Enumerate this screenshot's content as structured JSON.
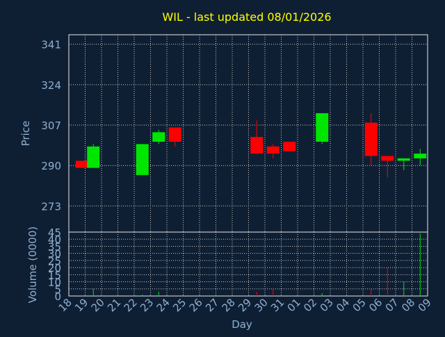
{
  "chart_data": {
    "type": "candlestick",
    "title": "WIL - last updated 08/01/2026",
    "xlabel": "Day",
    "colors": {
      "background": "#0f1f33",
      "plot_border": "#e8e8e8",
      "grid": "#c8c8c8",
      "title": "#ffff00",
      "axis_text": "#8fb0d0",
      "up": "#00e600",
      "down": "#ff0000"
    },
    "price_panel": {
      "ylabel": "Price",
      "ylim": [
        262,
        345
      ],
      "yticks": [
        273,
        290,
        307,
        324,
        341
      ]
    },
    "volume_panel": {
      "ylabel": "Volume (0000)",
      "ylim": [
        0,
        45
      ],
      "yticks": [
        0,
        5,
        10,
        15,
        20,
        25,
        30,
        35,
        40,
        45
      ]
    },
    "x_ticks": [
      "18",
      "19",
      "20",
      "21",
      "22",
      "23",
      "24",
      "25",
      "26",
      "27",
      "28",
      "29",
      "30",
      "31",
      "01",
      "02",
      "03",
      "04",
      "05",
      "06",
      "07",
      "08",
      "09"
    ],
    "candles": [
      {
        "x": 0.3,
        "open": 292,
        "close": 289,
        "high": 292,
        "low": 289,
        "volume": 0
      },
      {
        "x": 1,
        "open": 289,
        "close": 298,
        "high": 299,
        "low": 289,
        "volume": 5
      },
      {
        "x": 4,
        "open": 286,
        "close": 299,
        "high": 299,
        "low": 286,
        "volume": 1
      },
      {
        "x": 5,
        "open": 300,
        "close": 304,
        "high": 305,
        "low": 299,
        "volume": 3
      },
      {
        "x": 6,
        "open": 306,
        "close": 300,
        "high": 306,
        "low": 298,
        "volume": 1
      },
      {
        "x": 11,
        "open": 302,
        "close": 295,
        "high": 309,
        "low": 295,
        "volume": 3
      },
      {
        "x": 12,
        "open": 298,
        "close": 295,
        "high": 299,
        "low": 293,
        "volume": 5
      },
      {
        "x": 13,
        "open": 300,
        "close": 296,
        "high": 300,
        "low": 296,
        "volume": 0
      },
      {
        "x": 15,
        "open": 300,
        "close": 312,
        "high": 312,
        "low": 299,
        "volume": 2
      },
      {
        "x": 18,
        "open": 308,
        "close": 294,
        "high": 312,
        "low": 290,
        "volume": 5
      },
      {
        "x": 19,
        "open": 294,
        "close": 292,
        "high": 294,
        "low": 285,
        "volume": 20
      },
      {
        "x": 20,
        "open": 292,
        "close": 293,
        "high": 293,
        "low": 288,
        "volume": 10
      },
      {
        "x": 21,
        "open": 293,
        "close": 295,
        "high": 297,
        "low": 290,
        "volume": 44
      }
    ]
  }
}
